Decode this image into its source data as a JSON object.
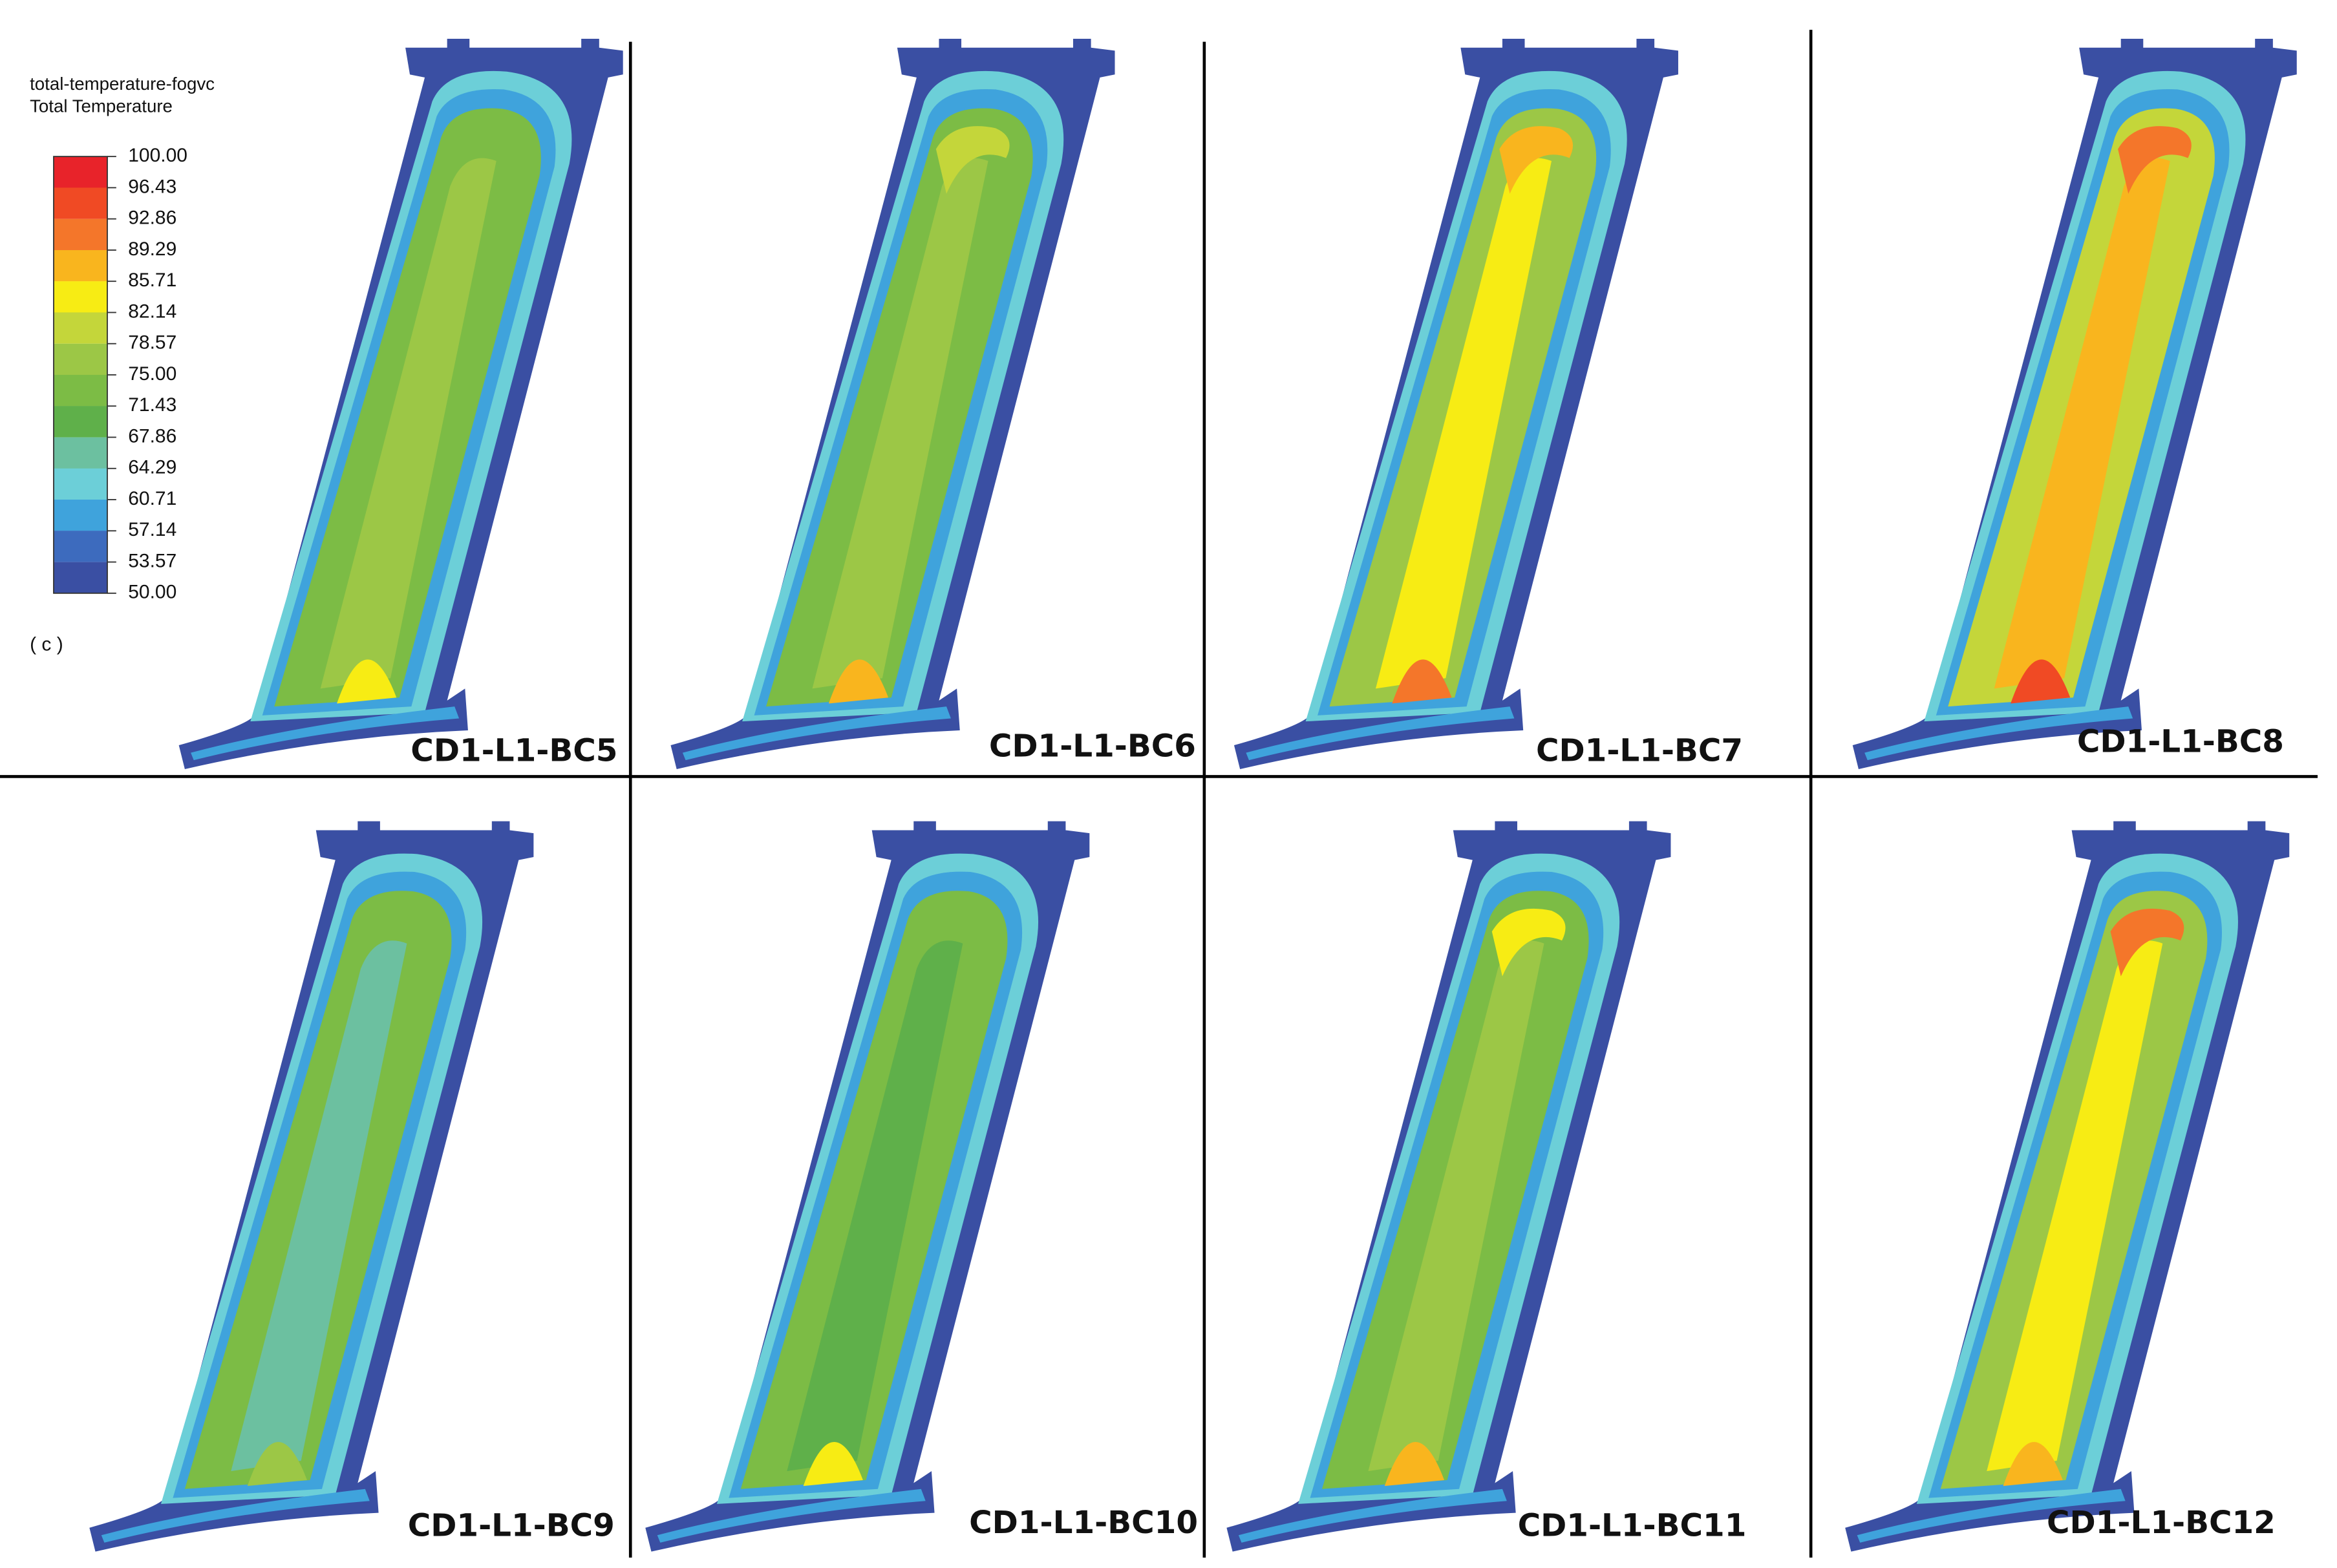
{
  "legend": {
    "title_lines": [
      "total-temperature-fogvc",
      "Total Temperature"
    ],
    "labels": [
      "100.00",
      "96.43",
      "92.86",
      "89.29",
      "85.71",
      "82.14",
      "78.57",
      "75.00",
      "71.43",
      "67.86",
      "64.29",
      "60.71",
      "57.14",
      "53.57",
      "50.00"
    ]
  },
  "panel_label": "( c )",
  "panels": [
    "CD1-L1-BC5",
    "CD1-L1-BC6",
    "CD1-L1-BC7",
    "CD1-L1-BC8",
    "CD1-L1-BC9",
    "CD1-L1-BC10",
    "CD1-L1-BC11",
    "CD1-L1-BC12"
  ]
}
